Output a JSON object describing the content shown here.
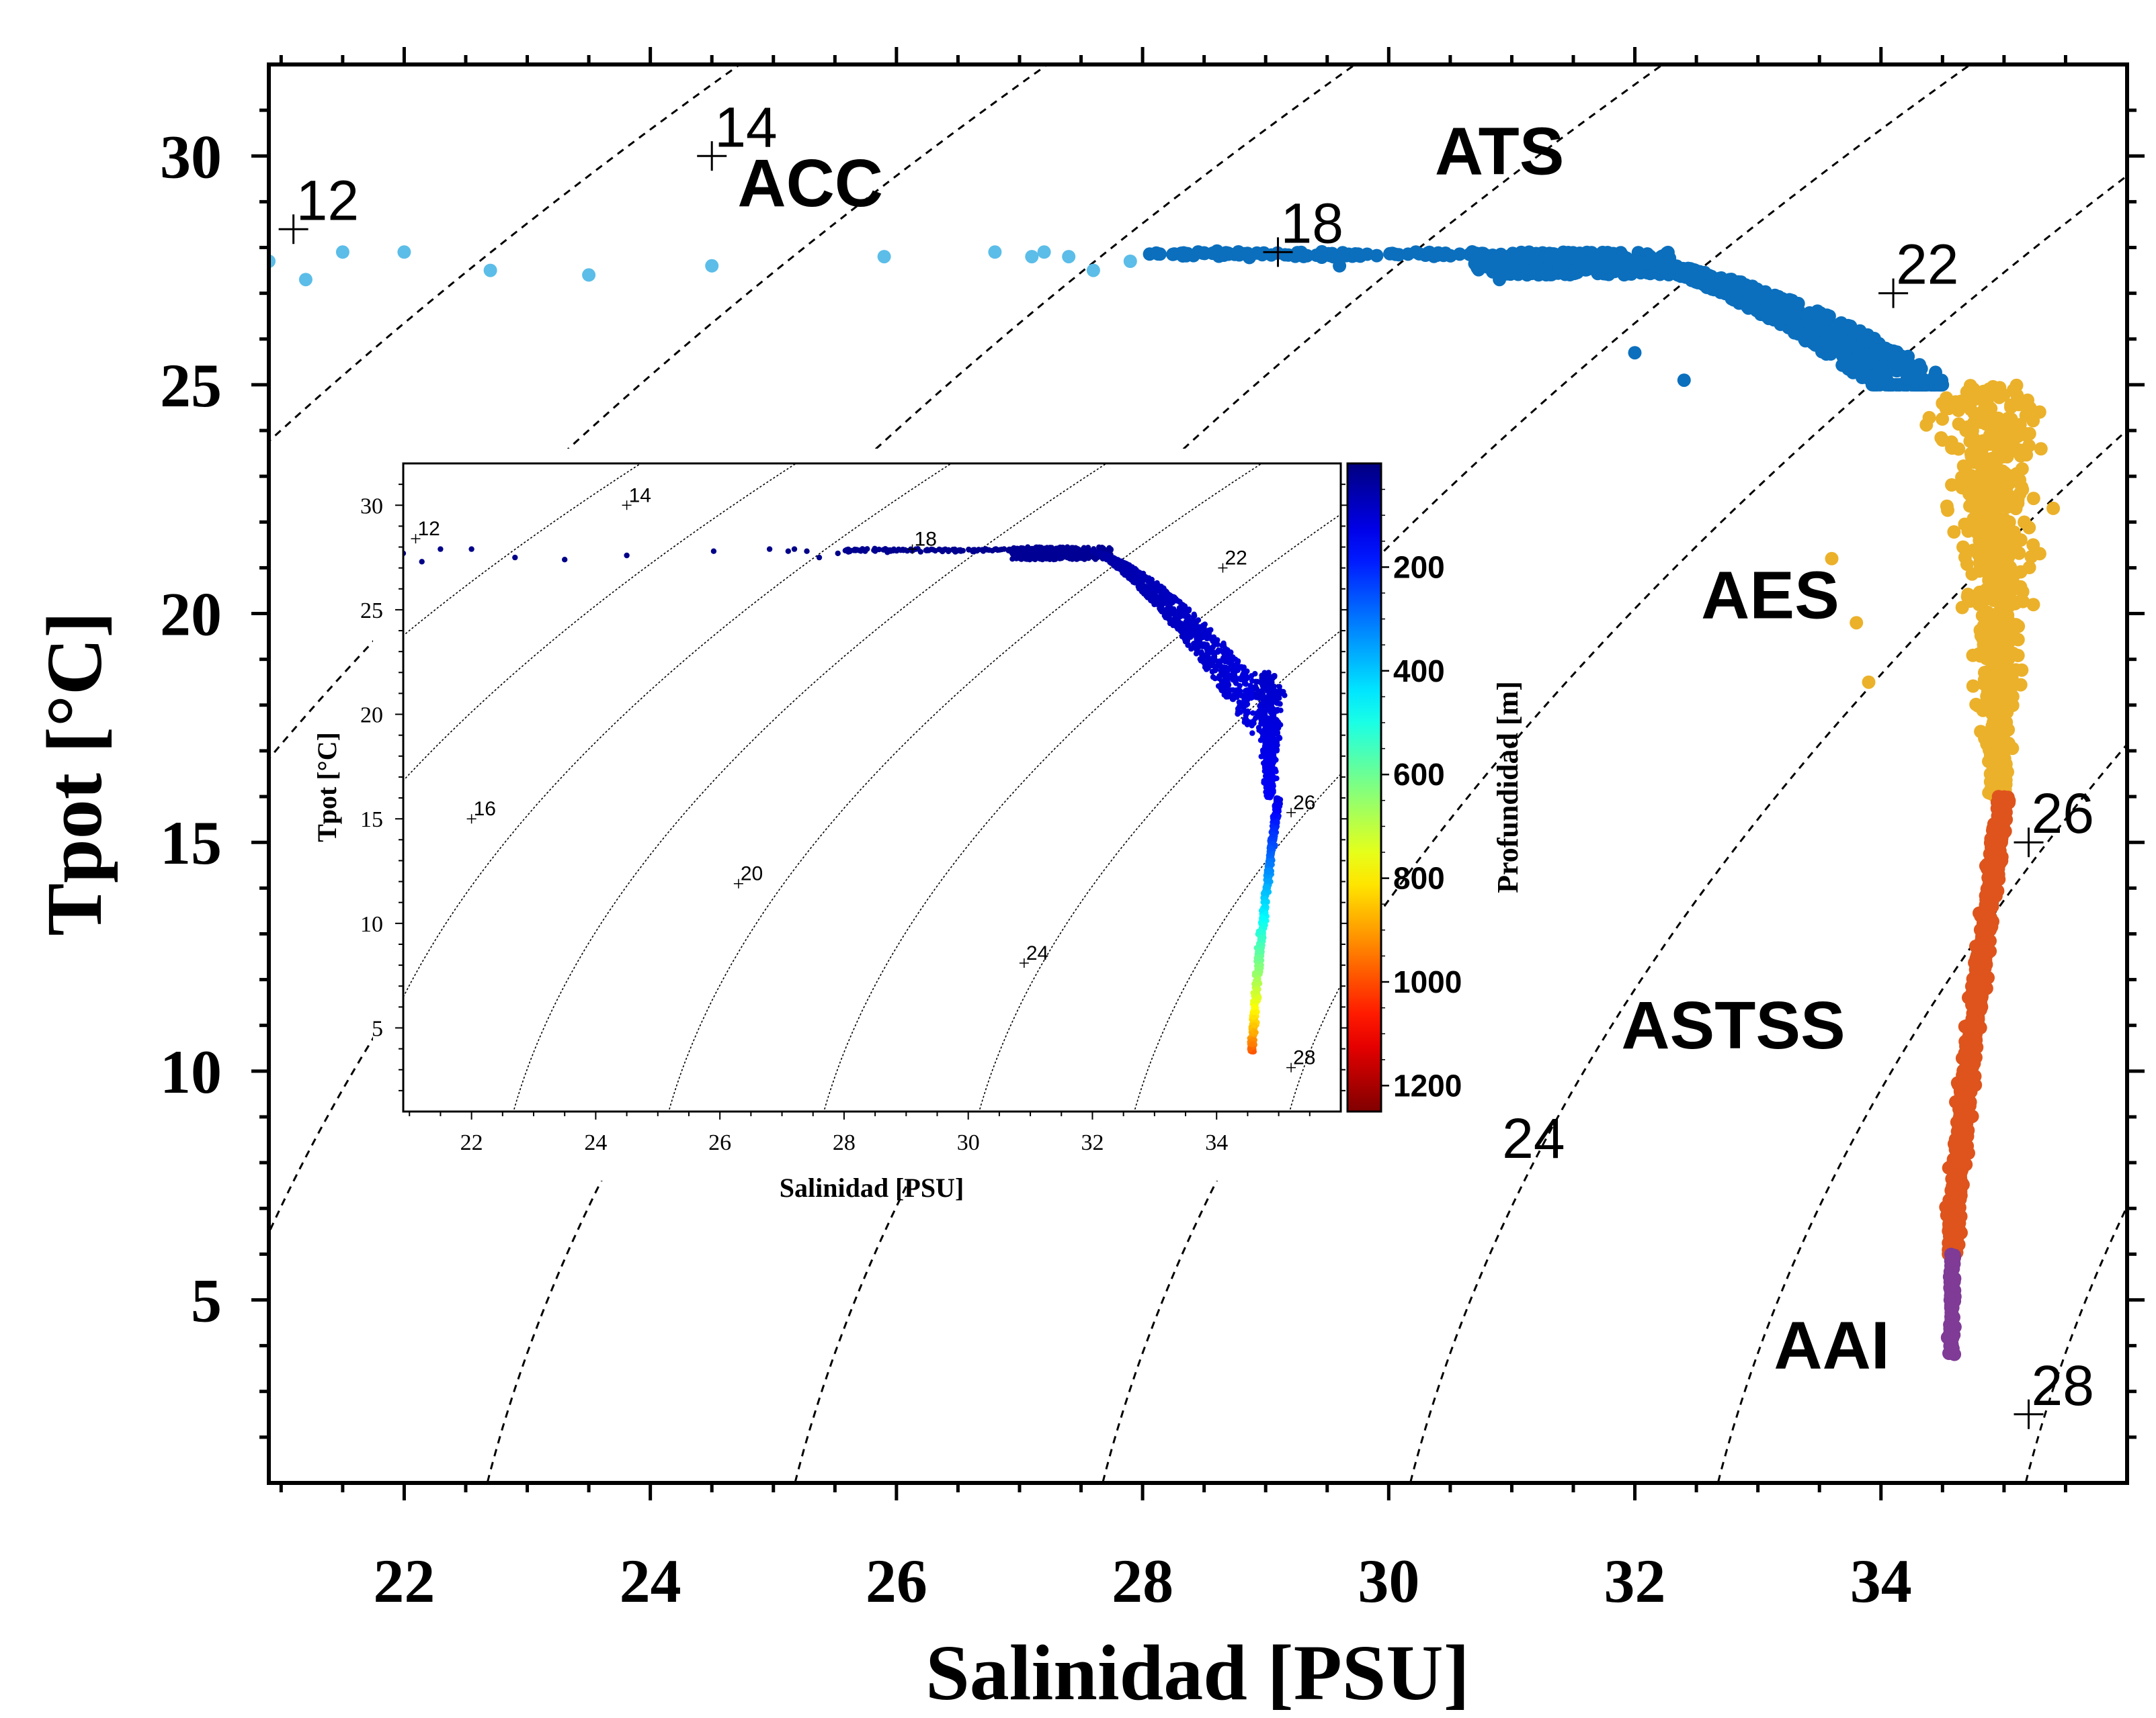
{
  "chart_data": [
    {
      "type": "scatter",
      "name": "main",
      "xlabel": "Salinidad [PSU]",
      "ylabel": "Tpot [°C]",
      "xlim": [
        20.9,
        36.0
      ],
      "ylim": [
        1.0,
        32.0
      ],
      "xticks": [
        "22",
        "24",
        "26",
        "28",
        "30",
        "32",
        "34"
      ],
      "xtick_values": [
        22,
        24,
        26,
        28,
        30,
        32,
        34
      ],
      "yticks": [
        "5",
        "10",
        "15",
        "20",
        "25",
        "30"
      ],
      "ytick_values": [
        5,
        10,
        15,
        20,
        25,
        30
      ],
      "isopycnal_labels": [
        "12",
        "14",
        "18",
        "22",
        "24",
        "26",
        "28"
      ],
      "isopycnal_label_positions": [
        [
          21.1,
          28.4
        ],
        [
          24.5,
          30.0
        ],
        [
          29.1,
          27.9
        ],
        [
          34.1,
          27.0
        ],
        [
          30.9,
          7.9
        ],
        [
          35.2,
          15.0
        ],
        [
          35.2,
          2.5
        ]
      ],
      "water_masses": [
        {
          "label": "ACC",
          "s": 25.3,
          "t": 28.9
        },
        {
          "label": "ATS",
          "s": 30.9,
          "t": 29.6
        },
        {
          "label": "AES",
          "s": 33.1,
          "t": 19.9
        },
        {
          "label": "ASTSS",
          "s": 32.8,
          "t": 10.5
        },
        {
          "label": "AAI",
          "s": 33.6,
          "t": 3.5
        }
      ],
      "groups": [
        {
          "label": "ACC",
          "color": "#5bbde8",
          "s": [
            20.9,
            21.2,
            21.5,
            22.0,
            22.7,
            23.5,
            24.5,
            25.9,
            26.8,
            27.1,
            27.2,
            27.4,
            27.6,
            27.9
          ],
          "t": [
            27.7,
            27.3,
            27.9,
            27.9,
            27.5,
            27.4,
            27.6,
            27.8,
            27.9,
            27.8,
            27.9,
            27.8,
            27.5,
            27.7
          ]
        },
        {
          "label": "ATS",
          "color": "#0b6fbd",
          "s_range": [
            28.0,
            34.6
          ],
          "t_range": [
            25.0,
            28.0
          ]
        },
        {
          "label": "AES",
          "color": "#ebb12a",
          "s_range": [
            33.5,
            35.4
          ],
          "t_range": [
            16.0,
            25.0
          ]
        },
        {
          "label": "ASTSS",
          "color": "#de541c",
          "s_range": [
            34.5,
            35.1
          ],
          "t_range": [
            6.0,
            16.0
          ]
        },
        {
          "label": "AAI",
          "color": "#7f3b96",
          "s_range": [
            34.5,
            34.7
          ],
          "t_range": [
            3.8,
            6.0
          ]
        }
      ]
    },
    {
      "type": "scatter",
      "name": "inset",
      "xlabel": "Salinidad [PSU]",
      "ylabel": "Tpot [°C]",
      "xlim": [
        20.9,
        36.0
      ],
      "ylim": [
        1.0,
        32.0
      ],
      "xticks": [
        "22",
        "24",
        "26",
        "28",
        "30",
        "32",
        "34"
      ],
      "yticks": [
        "5",
        "10",
        "15",
        "20",
        "25",
        "30"
      ],
      "isopycnal_labels": [
        "12",
        "14",
        "16",
        "18",
        "20",
        "22",
        "24",
        "26",
        "28"
      ],
      "colorbar_label": "Profundidad [m]",
      "colorbar_ticks": [
        "200",
        "400",
        "600",
        "800",
        "1000",
        "1200"
      ],
      "colorbar_tick_values": [
        200,
        400,
        600,
        800,
        1000,
        1200
      ],
      "colorbar_range": [
        0,
        1250
      ],
      "colormap": "jet",
      "depth_range": [
        0,
        1000
      ]
    }
  ]
}
